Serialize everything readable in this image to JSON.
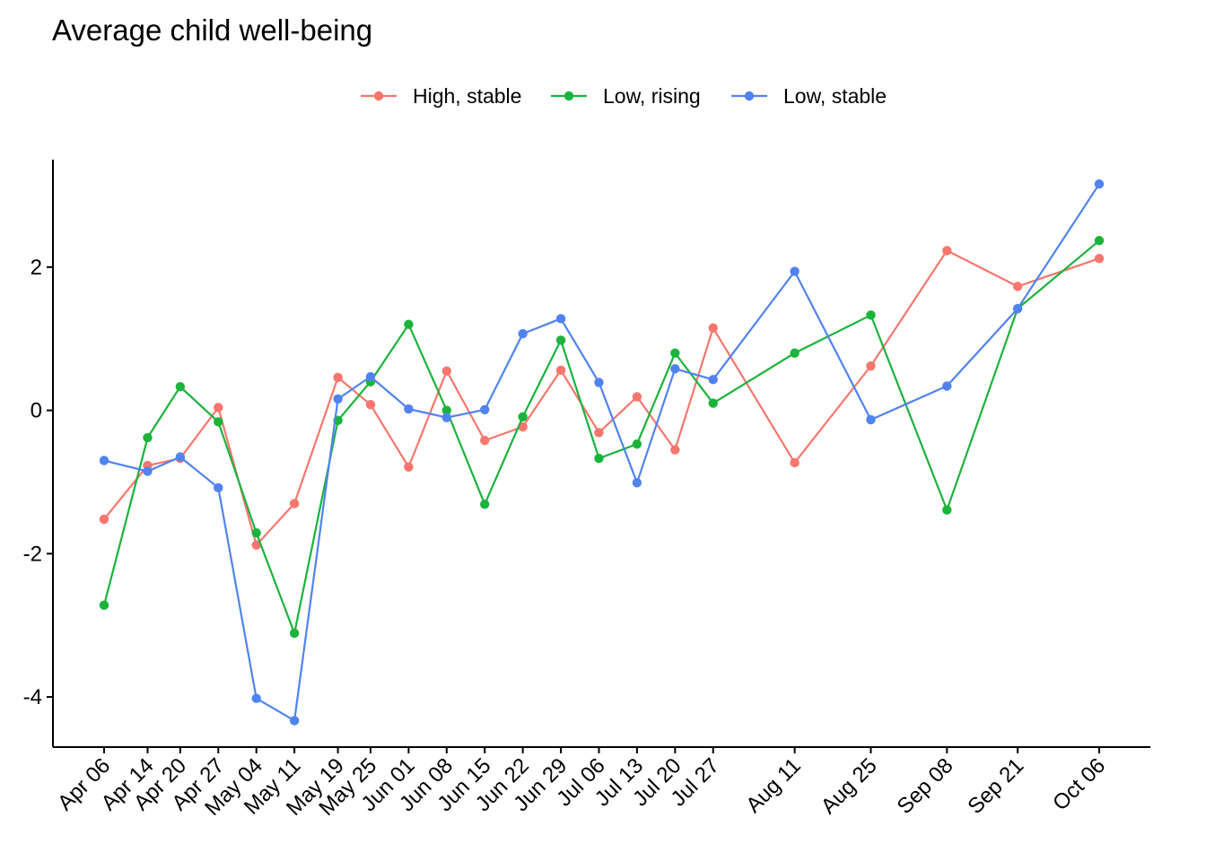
{
  "chart_data": {
    "type": "line",
    "title": "Average child well-being",
    "xlabel": "",
    "ylabel": "",
    "x": [
      "2020-04-06",
      "2020-04-14",
      "2020-04-20",
      "2020-04-27",
      "2020-05-04",
      "2020-05-11",
      "2020-05-19",
      "2020-05-25",
      "2020-06-01",
      "2020-06-08",
      "2020-06-15",
      "2020-06-22",
      "2020-06-29",
      "2020-07-06",
      "2020-07-13",
      "2020-07-20",
      "2020-07-27",
      "2020-08-11",
      "2020-08-25",
      "2020-09-08",
      "2020-09-21",
      "2020-10-06"
    ],
    "x_labels": [
      "Apr 06",
      "Apr 14",
      "Apr 20",
      "Apr 27",
      "May 04",
      "May 11",
      "May 19",
      "May 25",
      "Jun 01",
      "Jun 08",
      "Jun 15",
      "Jun 22",
      "Jun 29",
      "Jul 06",
      "Jul 13",
      "Jul 20",
      "Jul 27",
      "Aug 11",
      "Aug 25",
      "Sep 08",
      "Sep 21",
      "Oct 06"
    ],
    "ylim": [
      -4.7,
      3.5
    ],
    "yticks": [
      -4,
      -2,
      0,
      2
    ],
    "ytick_labels": [
      "-4",
      "-2",
      "0",
      "2"
    ],
    "grid": false,
    "legend_position": "top",
    "series": [
      {
        "name": "High, stable",
        "color": "#F8766D",
        "values": [
          -1.52,
          -0.77,
          -0.67,
          0.04,
          -1.88,
          -1.3,
          0.46,
          0.08,
          -0.79,
          0.55,
          -0.42,
          -0.23,
          0.56,
          -0.31,
          0.19,
          -0.55,
          1.15,
          -0.73,
          0.62,
          2.23,
          1.73,
          2.12
        ]
      },
      {
        "name": "Low, rising",
        "color": "#1BB33C",
        "values": [
          -2.72,
          -0.38,
          0.33,
          -0.16,
          -1.71,
          -3.11,
          -0.14,
          0.4,
          1.2,
          0.0,
          -1.31,
          -0.09,
          0.98,
          -0.67,
          -0.47,
          0.8,
          0.1,
          0.8,
          1.33,
          -1.39,
          1.42,
          2.37
        ]
      },
      {
        "name": "Low, stable",
        "color": "#5083F0",
        "values": [
          -0.7,
          -0.85,
          -0.65,
          -1.08,
          -4.02,
          -4.33,
          0.16,
          0.47,
          0.02,
          -0.1,
          0.01,
          1.07,
          1.28,
          0.39,
          -1.01,
          0.58,
          0.43,
          1.94,
          -0.13,
          0.34,
          1.42,
          3.16
        ]
      }
    ]
  }
}
